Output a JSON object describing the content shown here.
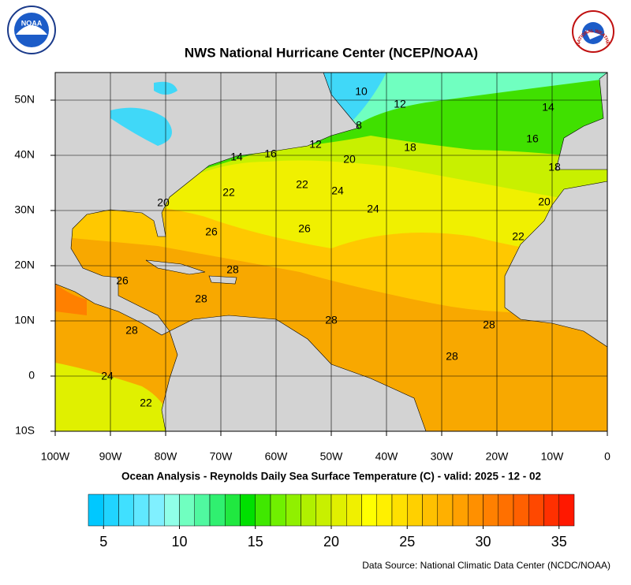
{
  "header": {
    "title": "NWS National Hurricane Center (NCEP/NOAA)",
    "logo_left": "NOAA",
    "logo_right": "NATIONAL WEATHER SERVICE"
  },
  "map": {
    "lon_range": [
      -100,
      0
    ],
    "lat_range": [
      -10,
      55
    ],
    "lon_ticks": [
      {
        "value": -100,
        "label": "100W"
      },
      {
        "value": -90,
        "label": "90W"
      },
      {
        "value": -80,
        "label": "80W"
      },
      {
        "value": -70,
        "label": "70W"
      },
      {
        "value": -60,
        "label": "60W"
      },
      {
        "value": -50,
        "label": "50W"
      },
      {
        "value": -40,
        "label": "40W"
      },
      {
        "value": -30,
        "label": "30W"
      },
      {
        "value": -20,
        "label": "20W"
      },
      {
        "value": -10,
        "label": "10W"
      },
      0
    ],
    "lat_ticks": [
      {
        "value": -10,
        "label": "10S"
      },
      0,
      {
        "value": 10,
        "label": "10N"
      },
      {
        "value": 20,
        "label": "20N"
      },
      {
        "value": 30,
        "label": "30N"
      },
      {
        "value": 40,
        "label": "40N"
      },
      {
        "value": 50,
        "label": "50N"
      }
    ],
    "grid": true,
    "contour_labels": [
      10,
      12,
      14,
      8,
      12,
      16,
      14,
      16,
      18,
      20,
      18,
      22,
      22,
      24,
      24,
      20,
      20,
      26,
      26,
      22,
      28,
      28,
      26,
      28,
      28,
      28,
      28,
      24,
      22
    ]
  },
  "subtitle": "Ocean Analysis - Reynolds Daily Sea Surface Temperature (C) - valid: 2025 - 12 - 02",
  "colorbar": {
    "range": [
      4,
      36
    ],
    "ticks": [
      5,
      10,
      15,
      20,
      25,
      30,
      35
    ],
    "colors": [
      "#00c8ff",
      "#20d4ff",
      "#40e0ff",
      "#60e8ff",
      "#80f0ff",
      "#90ffe8",
      "#70ffc0",
      "#50f8a0",
      "#30f070",
      "#20e840",
      "#00e000",
      "#40e800",
      "#70f000",
      "#90f000",
      "#b0f000",
      "#c8f000",
      "#e0f000",
      "#f0f000",
      "#ffff00",
      "#fff000",
      "#ffe000",
      "#ffd000",
      "#ffc000",
      "#ffb000",
      "#ffa000",
      "#ff9000",
      "#ff8000",
      "#ff7000",
      "#ff6000",
      "#ff4800",
      "#ff3000",
      "#ff1800"
    ]
  },
  "footer": {
    "source": "Data Source: National Climatic Data Center (NCDC/NOAA)"
  }
}
